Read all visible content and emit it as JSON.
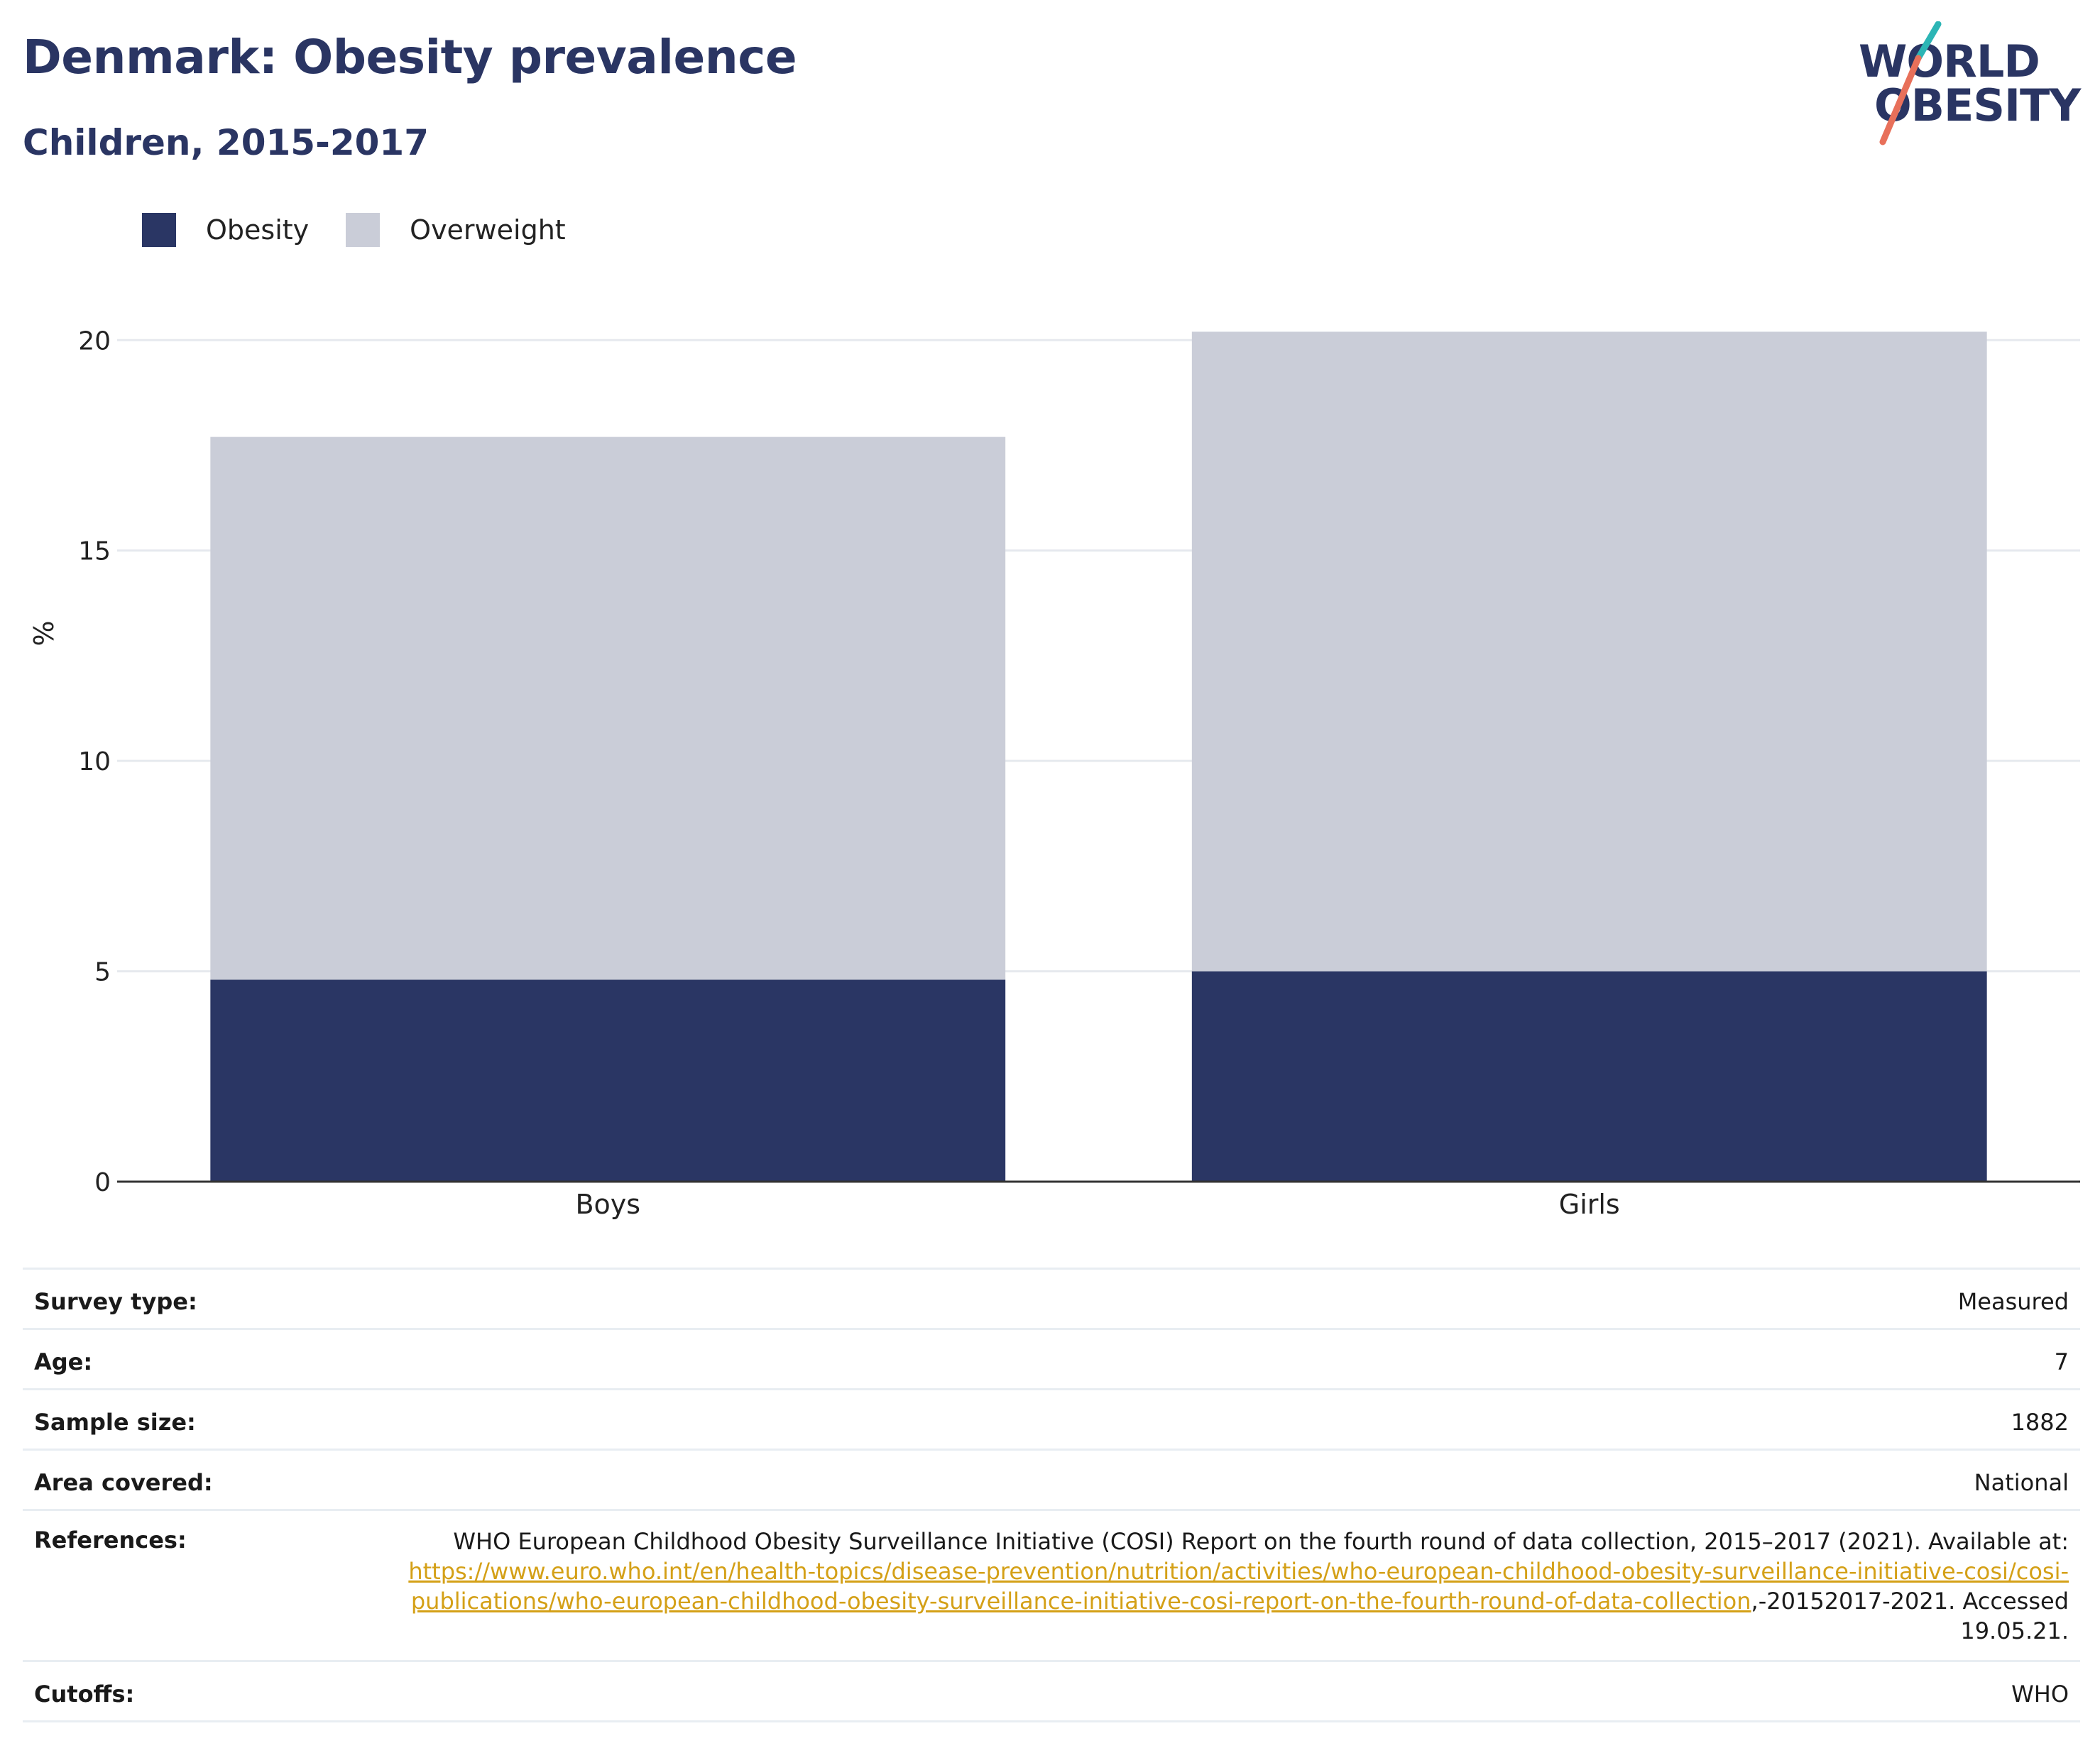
{
  "header": {
    "title": "Denmark: Obesity prevalence",
    "subtitle": "Children, 2015-2017",
    "logo_line1": "WORLD",
    "logo_line2": "OBESITY"
  },
  "colors": {
    "obesity": "#2a3664",
    "overweight": "#cacdd8",
    "title": "#2a3563",
    "link": "#d4a017",
    "logo_teal": "#2cb5b5",
    "logo_coral": "#e8705a"
  },
  "chart_data": {
    "type": "bar",
    "stacked": true,
    "categories": [
      "Boys",
      "Girls"
    ],
    "series": [
      {
        "name": "Obesity",
        "values": [
          4.8,
          5.0
        ]
      },
      {
        "name": "Overweight",
        "values": [
          12.9,
          15.2
        ]
      }
    ],
    "ylabel": "%",
    "xlabel": "",
    "ylim": [
      0,
      21
    ],
    "yticks": [
      0,
      5,
      10,
      15,
      20
    ],
    "grid": true,
    "legend": "top-left"
  },
  "info": {
    "survey_type_label": "Survey type:",
    "survey_type_value": "Measured",
    "age_label": "Age:",
    "age_value": "7",
    "sample_size_label": "Sample size:",
    "sample_size_value": "1882",
    "area_label": "Area covered:",
    "area_value": "National",
    "references_label": "References:",
    "references_prefix": "WHO European Childhood Obesity Surveillance Initiative (COSI) Report on the fourth round of data collection, 2015–2017 (2021). Available at: ",
    "references_link": "https://www.euro.who.int/en/health-topics/disease-prevention/nutrition/activities/who-european-childhood-obesity-surveillance-initiative-cosi/cosi-publications/who-european-childhood-obesity-surveillance-initiative-cosi-report-on-the-fourth-round-of-data-collection",
    "references_suffix": ",-20152017-2021. Accessed 19.05.21.",
    "cutoffs_label": "Cutoffs:",
    "cutoffs_value": "WHO"
  }
}
